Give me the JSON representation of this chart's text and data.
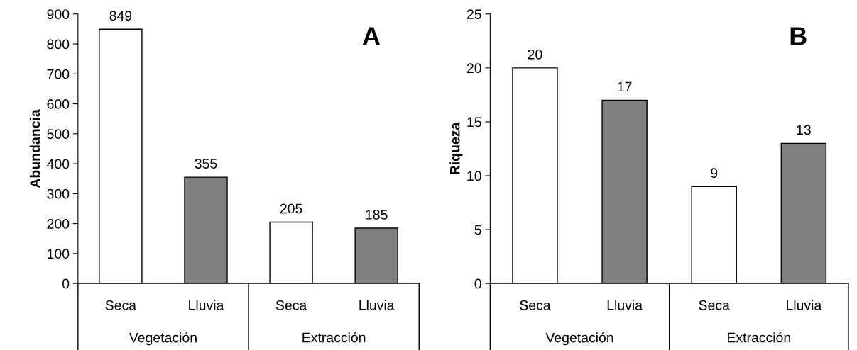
{
  "chart_data": [
    {
      "type": "bar",
      "title": "A",
      "ylabel": "Abundancia",
      "categories": [
        "Seca",
        "Lluvia",
        "Seca",
        "Lluvia"
      ],
      "values": [
        849,
        355,
        205,
        185
      ],
      "colors": [
        "#ffffff",
        "#808080",
        "#ffffff",
        "#808080"
      ],
      "ylim": [
        0,
        900
      ],
      "yticks": [
        0,
        100,
        200,
        300,
        400,
        500,
        600,
        700,
        800,
        900
      ],
      "data_labels": true,
      "annotations": [
        "Vegetación",
        "Extracción"
      ],
      "grid": false,
      "legend": false
    },
    {
      "type": "bar",
      "title": "B",
      "ylabel": "Riqueza",
      "categories": [
        "Seca",
        "Lluvia",
        "Seca",
        "Lluvia"
      ],
      "values": [
        20,
        17,
        9,
        13
      ],
      "colors": [
        "#ffffff",
        "#808080",
        "#ffffff",
        "#808080"
      ],
      "ylim": [
        0,
        25
      ],
      "yticks": [
        0,
        5,
        10,
        15,
        20,
        25
      ],
      "data_labels": true,
      "annotations": [
        "Vegetación",
        "Extracción"
      ],
      "grid": false,
      "legend": false
    }
  ]
}
